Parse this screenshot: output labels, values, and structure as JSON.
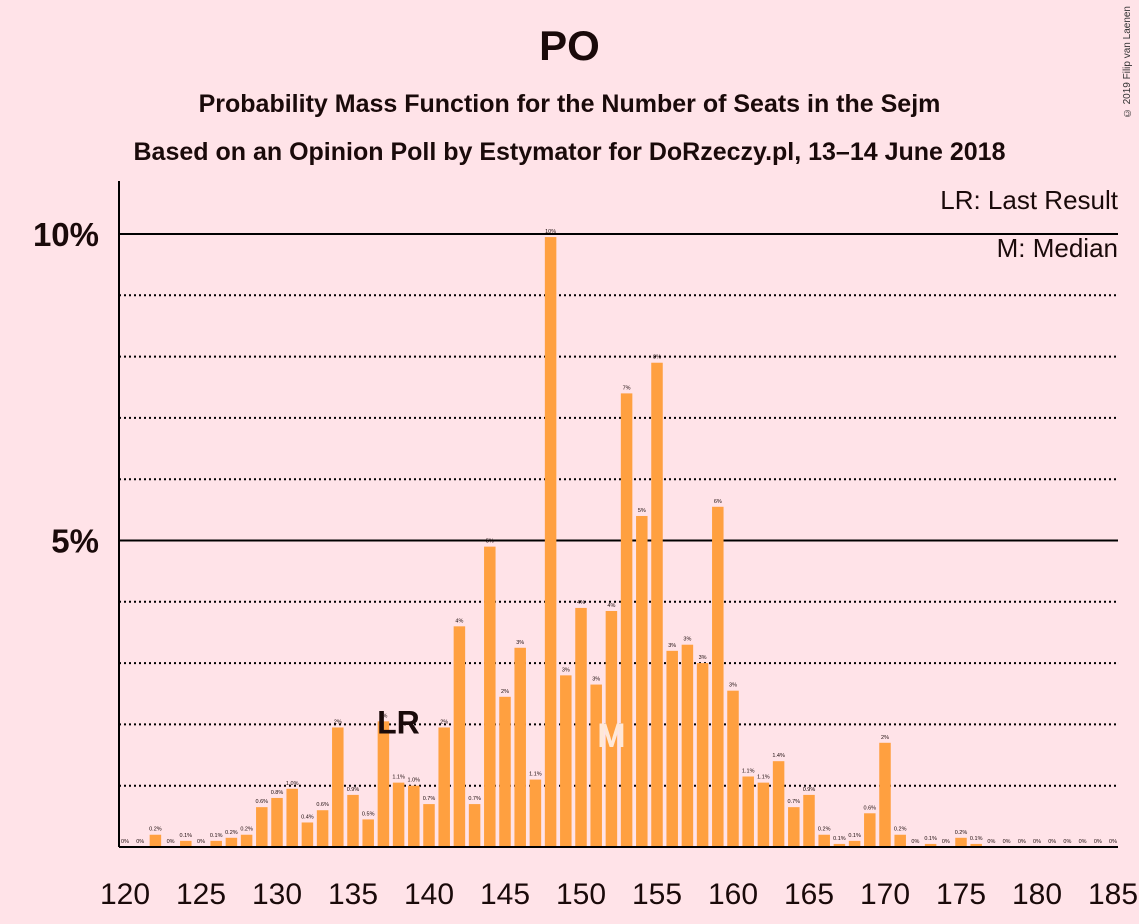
{
  "title": "PO",
  "subtitle": "Probability Mass Function for the Number of Seats in the Sejm",
  "subtitle2": "Based on an Opinion Poll by Estymator for DoRzeczy.pl, 13–14 June 2018",
  "copyright": "© 2019 Filip van Laenen",
  "legend": {
    "lr": "LR: Last Result",
    "m": "M: Median"
  },
  "colors": {
    "background": "#ffe3e8",
    "bar": "#ffa040",
    "text": "#1a0a0a"
  },
  "chart_data": {
    "type": "bar",
    "title": "PO",
    "x": [
      120,
      121,
      122,
      123,
      124,
      125,
      126,
      127,
      128,
      129,
      130,
      131,
      132,
      133,
      134,
      135,
      136,
      137,
      138,
      139,
      140,
      141,
      142,
      143,
      144,
      145,
      146,
      147,
      148,
      149,
      150,
      151,
      152,
      153,
      154,
      155,
      156,
      157,
      158,
      159,
      160,
      161,
      162,
      163,
      164,
      165,
      166,
      167,
      168,
      169,
      170,
      171,
      172,
      173,
      174,
      175,
      176,
      177,
      178,
      179,
      180,
      181,
      182,
      183,
      184,
      185
    ],
    "values": [
      0,
      0,
      0.2,
      0,
      0.1,
      0,
      0.1,
      0.15,
      0.2,
      0.65,
      0.8,
      0.95,
      0.4,
      0.6,
      1.95,
      0.85,
      0.45,
      2.05,
      1.05,
      1.0,
      0.7,
      1.95,
      3.6,
      0.7,
      4.9,
      2.45,
      3.25,
      1.1,
      9.95,
      2.8,
      3.9,
      2.65,
      3.85,
      7.4,
      5.4,
      7.9,
      3.2,
      3.3,
      3.0,
      5.55,
      2.55,
      1.15,
      1.05,
      1.4,
      0.65,
      0.85,
      0.2,
      0.05,
      0.1,
      0.55,
      1.7,
      0.2,
      0,
      0.05,
      0,
      0.15,
      0.05,
      0,
      0,
      0,
      0,
      0,
      0,
      0,
      0,
      0
    ],
    "labels": [
      "0%",
      "0%",
      "0.2%",
      "0%",
      "0.1%",
      "0%",
      "0.1%",
      "0.2%",
      "0.2%",
      "0.6%",
      "0.8%",
      "1.0%",
      "0.4%",
      "0.6%",
      "2%",
      "0.9%",
      "0.5%",
      "2%",
      "1.1%",
      "1.0%",
      "0.7%",
      "2%",
      "4%",
      "0.7%",
      "5%",
      "2%",
      "3%",
      "1.1%",
      "10%",
      "3%",
      "4%",
      "3%",
      "4%",
      "7%",
      "5%",
      "8%",
      "3%",
      "3%",
      "3%",
      "6%",
      "3%",
      "1.1%",
      "1.1%",
      "1.4%",
      "0.7%",
      "0.9%",
      "0.2%",
      "0.1%",
      "0.1%",
      "0.6%",
      "2%",
      "0.2%",
      "0%",
      "0.1%",
      "0%",
      "0.2%",
      "0.1%",
      "0%",
      "0%",
      "0%",
      "0%",
      "0%",
      "0%",
      "0%",
      "0%",
      "0%"
    ],
    "xticks": [
      "120",
      "125",
      "130",
      "135",
      "140",
      "145",
      "150",
      "155",
      "160",
      "165",
      "170",
      "175",
      "180",
      "185"
    ],
    "yticks": [
      "5%",
      "10%"
    ],
    "ylim": [
      0,
      10.8
    ],
    "last_result": {
      "x": 137,
      "label": "LR"
    },
    "median": {
      "x": 152,
      "label": "M"
    },
    "grid": "dotted at 1% steps, solid at 5%"
  }
}
